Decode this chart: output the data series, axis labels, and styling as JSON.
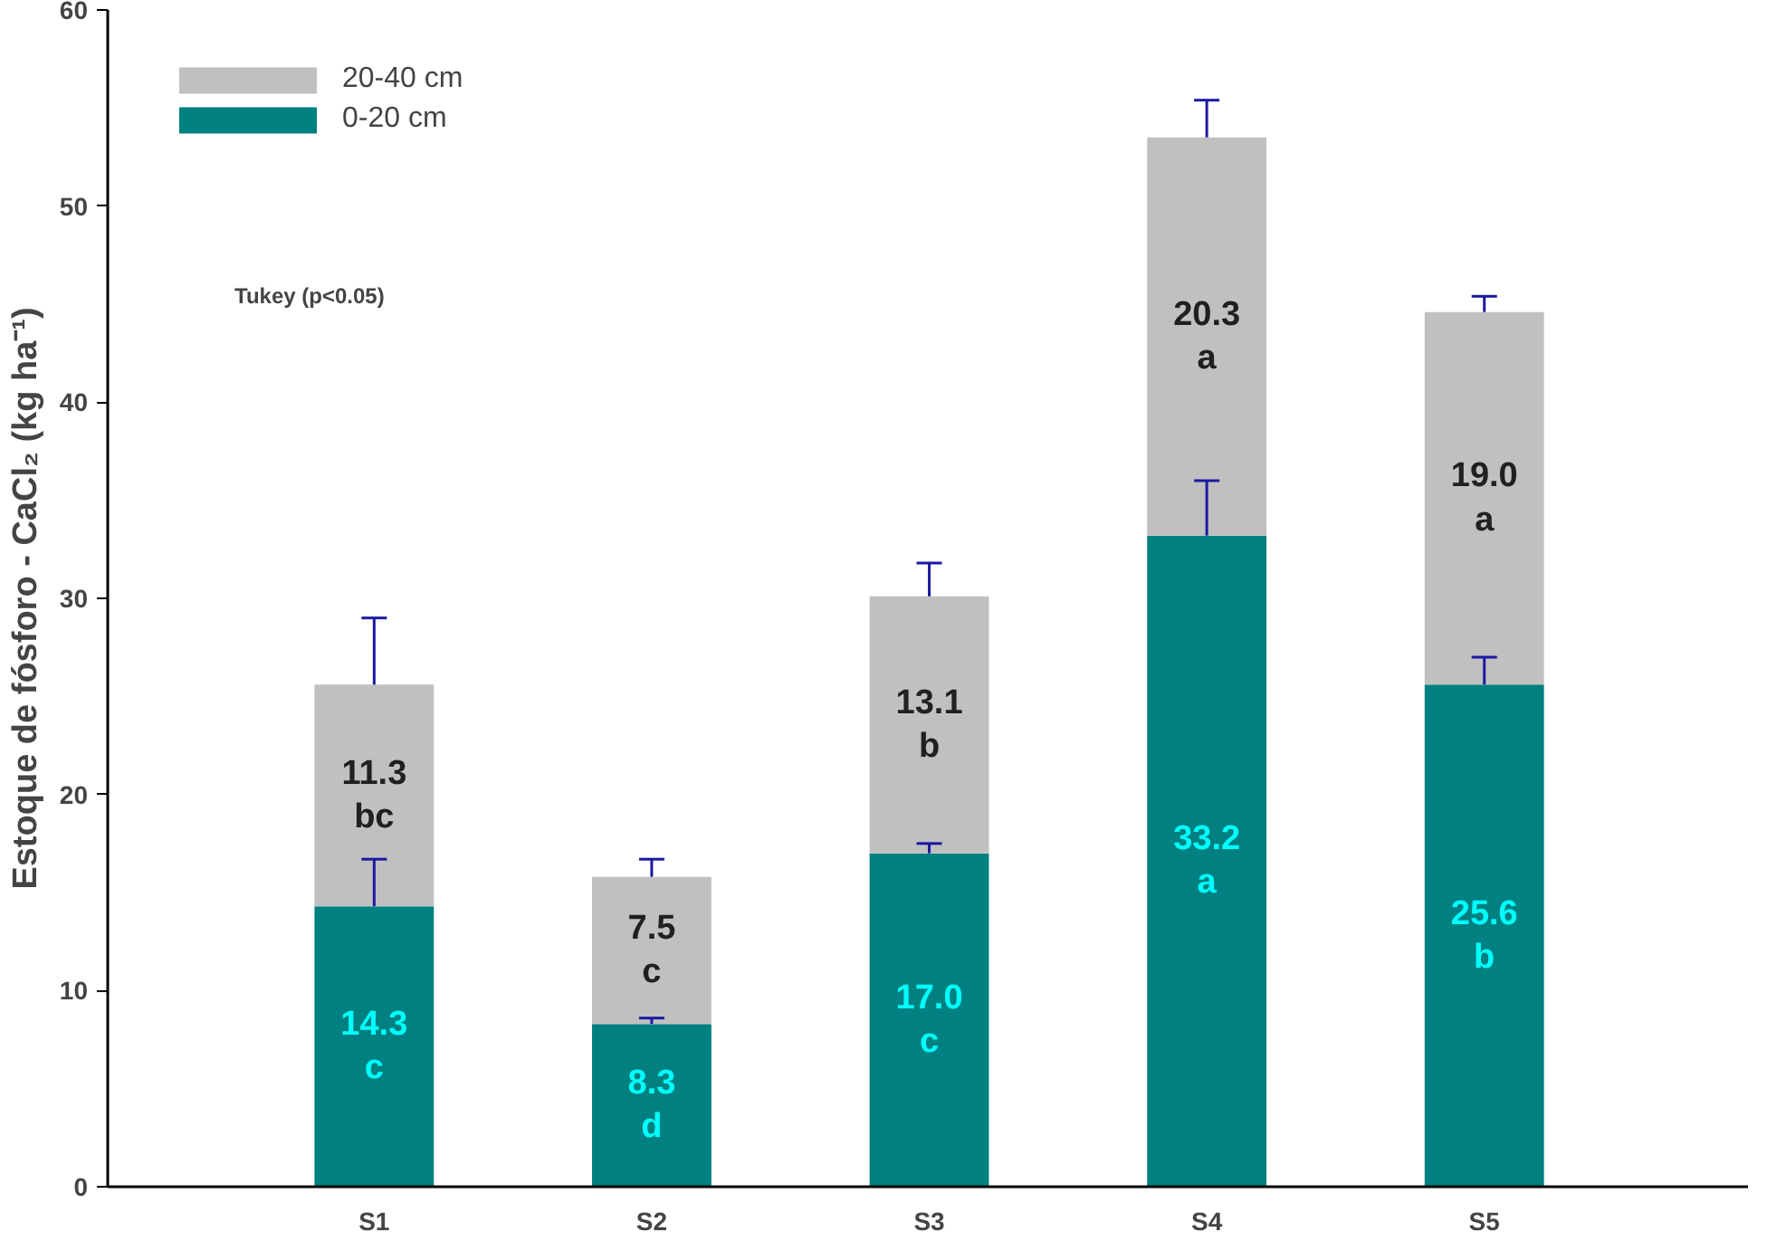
{
  "chart_data": {
    "type": "bar",
    "stacked": true,
    "ylabel": "Estoque de fósforo - CaCl₂ (kg ha⁻¹)",
    "categories": [
      "S1",
      "S2",
      "S3",
      "S4",
      "S5"
    ],
    "series": [
      {
        "name": "0-20 cm",
        "color": "#008080",
        "values": [
          14.3,
          8.3,
          17.0,
          33.2,
          25.6
        ],
        "errors": [
          [
            14.3,
            16.7
          ],
          [
            8.3,
            8.6
          ],
          [
            17.0,
            17.5
          ],
          [
            33.2,
            36.0
          ],
          [
            25.6,
            27.0
          ]
        ],
        "value_labels": [
          "14.3\nc",
          "8.3\nd",
          "17.0\nc",
          "33.2\na",
          "25.6\nb"
        ]
      },
      {
        "name": "20-40 cm",
        "color": "#c0c0c0",
        "values": [
          11.3,
          7.5,
          13.1,
          20.3,
          19.0
        ],
        "errors": [
          [
            25.6,
            29.0
          ],
          [
            15.8,
            16.7
          ],
          [
            30.1,
            31.8
          ],
          [
            53.5,
            55.4
          ],
          [
            44.6,
            45.4
          ]
        ],
        "value_labels": [
          "11.3\nbc",
          "7.5\nc",
          "13.1\nb",
          "20.3\na",
          "19.0\na"
        ]
      }
    ],
    "ylim": [
      0,
      60
    ],
    "yticks": [
      0,
      10,
      20,
      30,
      40,
      50,
      60
    ],
    "grid": false,
    "legend": "top left",
    "annotations": [
      "Tukey (p<0.05)"
    ]
  }
}
